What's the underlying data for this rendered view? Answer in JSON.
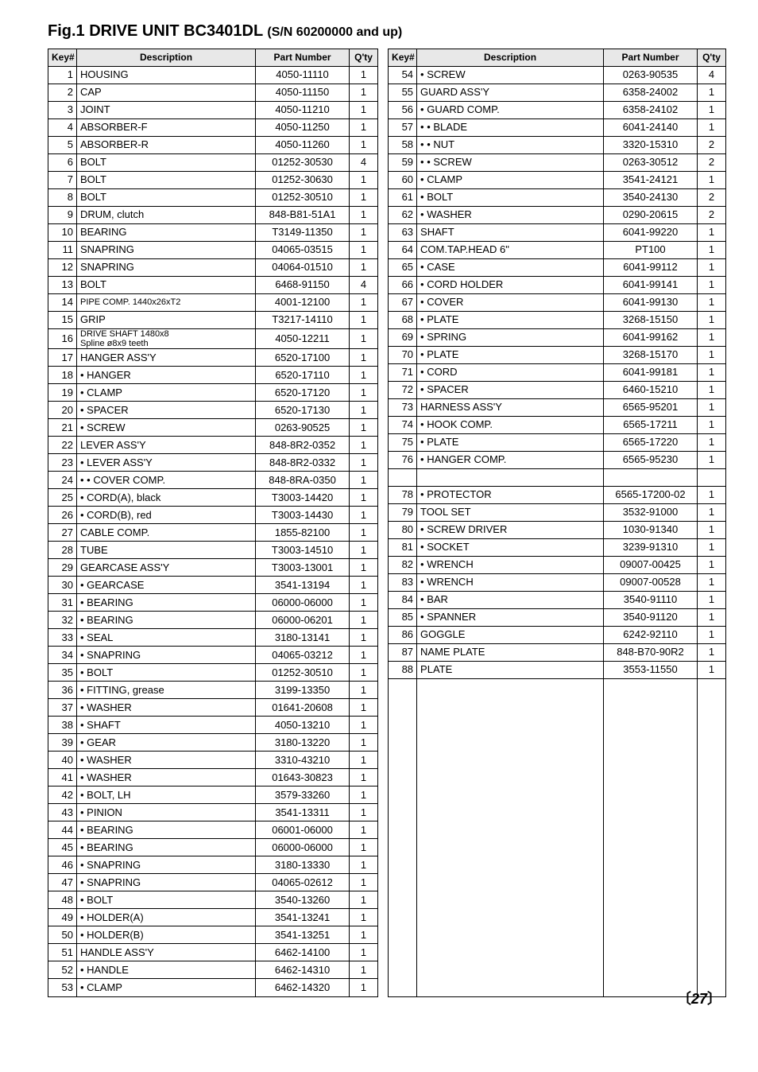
{
  "figure_title_prefix": "Fig.1 DRIVE UNIT  BC3401DL ",
  "figure_title_sn": "(S/N 60200000 and up)",
  "headers": {
    "key": "Key#",
    "desc": "Description",
    "part": "Part Number",
    "qty": "Q'ty"
  },
  "page_number": "27",
  "colors": {
    "header_bg": "#e8e8e8",
    "border": "#000000",
    "text": "#000000",
    "bg": "#ffffff"
  },
  "font": {
    "body_pt": 13,
    "title_pt": 20,
    "header_pt": 12
  },
  "left": [
    {
      "k": "1",
      "d": "HOUSING",
      "p": "4050-11110",
      "q": "1"
    },
    {
      "k": "2",
      "d": "CAP",
      "p": "4050-11150",
      "q": "1"
    },
    {
      "k": "3",
      "d": "JOINT",
      "p": "4050-11210",
      "q": "1"
    },
    {
      "k": "4",
      "d": "ABSORBER-F",
      "p": "4050-11250",
      "q": "1"
    },
    {
      "k": "5",
      "d": "ABSORBER-R",
      "p": "4050-11260",
      "q": "1"
    },
    {
      "k": "6",
      "d": "BOLT",
      "p": "01252-30530",
      "q": "4"
    },
    {
      "k": "7",
      "d": "BOLT",
      "p": "01252-30630",
      "q": "1"
    },
    {
      "k": "8",
      "d": "BOLT",
      "p": "01252-30510",
      "q": "1"
    },
    {
      "k": "9",
      "d": "DRUM, clutch",
      "p": "848-B81-51A1",
      "q": "1"
    },
    {
      "k": "10",
      "d": "BEARING",
      "p": "T3149-11350",
      "q": "1"
    },
    {
      "k": "11",
      "d": "SNAPRING",
      "p": "04065-03515",
      "q": "1"
    },
    {
      "k": "12",
      "d": "SNAPRING",
      "p": "04064-01510",
      "q": "1"
    },
    {
      "k": "13",
      "d": "BOLT",
      "p": "6468-91150",
      "q": "4"
    },
    {
      "k": "14",
      "d": "PIPE COMP. 1440x26xT2",
      "p": "4001-12100",
      "q": "1",
      "small": true
    },
    {
      "k": "15",
      "d": "GRIP",
      "p": "T3217-14110",
      "q": "1"
    },
    {
      "k": "16",
      "d": "DRIVE SHAFT 1480x8\nSpline ø8x9 teeth",
      "p": "4050-12211",
      "q": "1",
      "dbl": true,
      "small": true
    },
    {
      "k": "17",
      "d": "HANGER ASS'Y",
      "p": "6520-17100",
      "q": "1"
    },
    {
      "k": "18",
      "d": "• HANGER",
      "p": "6520-17110",
      "q": "1"
    },
    {
      "k": "19",
      "d": "• CLAMP",
      "p": "6520-17120",
      "q": "1"
    },
    {
      "k": "20",
      "d": "• SPACER",
      "p": "6520-17130",
      "q": "1"
    },
    {
      "k": "21",
      "d": "• SCREW",
      "p": "0263-90525",
      "q": "1"
    },
    {
      "k": "22",
      "d": "LEVER ASS'Y",
      "p": "848-8R2-0352",
      "q": "1"
    },
    {
      "k": "23",
      "d": "• LEVER ASS'Y",
      "p": "848-8R2-0332",
      "q": "1"
    },
    {
      "k": "24",
      "d": "• • COVER COMP.",
      "p": "848-8RA-0350",
      "q": "1"
    },
    {
      "k": "25",
      "d": "• CORD(A), black",
      "p": "T3003-14420",
      "q": "1"
    },
    {
      "k": "26",
      "d": "• CORD(B), red",
      "p": "T3003-14430",
      "q": "1"
    },
    {
      "k": "27",
      "d": "CABLE COMP.",
      "p": "1855-82100",
      "q": "1"
    },
    {
      "k": "28",
      "d": "TUBE",
      "p": "T3003-14510",
      "q": "1"
    },
    {
      "k": "29",
      "d": "GEARCASE ASS'Y",
      "p": "T3003-13001",
      "q": "1"
    },
    {
      "k": "30",
      "d": "• GEARCASE",
      "p": "3541-13194",
      "q": "1"
    },
    {
      "k": "31",
      "d": "• BEARING",
      "p": "06000-06000",
      "q": "1"
    },
    {
      "k": "32",
      "d": "• BEARING",
      "p": "06000-06201",
      "q": "1"
    },
    {
      "k": "33",
      "d": "• SEAL",
      "p": "3180-13141",
      "q": "1"
    },
    {
      "k": "34",
      "d": "• SNAPRING",
      "p": "04065-03212",
      "q": "1"
    },
    {
      "k": "35",
      "d": "• BOLT",
      "p": "01252-30510",
      "q": "1"
    },
    {
      "k": "36",
      "d": "• FITTING, grease",
      "p": "3199-13350",
      "q": "1"
    },
    {
      "k": "37",
      "d": "• WASHER",
      "p": "01641-20608",
      "q": "1"
    },
    {
      "k": "38",
      "d": "• SHAFT",
      "p": "4050-13210",
      "q": "1"
    },
    {
      "k": "39",
      "d": "• GEAR",
      "p": "3180-13220",
      "q": "1"
    },
    {
      "k": "40",
      "d": "• WASHER",
      "p": "3310-43210",
      "q": "1"
    },
    {
      "k": "41",
      "d": "• WASHER",
      "p": "01643-30823",
      "q": "1"
    },
    {
      "k": "42",
      "d": "• BOLT, LH",
      "p": "3579-33260",
      "q": "1"
    },
    {
      "k": "43",
      "d": "• PINION",
      "p": "3541-13311",
      "q": "1"
    },
    {
      "k": "44",
      "d": "• BEARING",
      "p": "06001-06000",
      "q": "1"
    },
    {
      "k": "45",
      "d": "• BEARING",
      "p": "06000-06000",
      "q": "1"
    },
    {
      "k": "46",
      "d": "• SNAPRING",
      "p": "3180-13330",
      "q": "1"
    },
    {
      "k": "47",
      "d": "• SNAPRING",
      "p": "04065-02612",
      "q": "1"
    },
    {
      "k": "48",
      "d": "• BOLT",
      "p": "3540-13260",
      "q": "1"
    },
    {
      "k": "49",
      "d": "• HOLDER(A)",
      "p": "3541-13241",
      "q": "1"
    },
    {
      "k": "50",
      "d": "• HOLDER(B)",
      "p": "3541-13251",
      "q": "1"
    },
    {
      "k": "51",
      "d": "HANDLE ASS'Y",
      "p": "6462-14100",
      "q": "1"
    },
    {
      "k": "52",
      "d": "• HANDLE",
      "p": "6462-14310",
      "q": "1"
    },
    {
      "k": "53",
      "d": "• CLAMP",
      "p": "6462-14320",
      "q": "1"
    }
  ],
  "right": [
    {
      "k": "54",
      "d": "• SCREW",
      "p": "0263-90535",
      "q": "4"
    },
    {
      "k": "55",
      "d": "GUARD ASS'Y",
      "p": "6358-24002",
      "q": "1"
    },
    {
      "k": "56",
      "d": "• GUARD COMP.",
      "p": "6358-24102",
      "q": "1"
    },
    {
      "k": "57",
      "d": "• • BLADE",
      "p": "6041-24140",
      "q": "1"
    },
    {
      "k": "58",
      "d": "• • NUT",
      "p": "3320-15310",
      "q": "2"
    },
    {
      "k": "59",
      "d": "• • SCREW",
      "p": "0263-30512",
      "q": "2"
    },
    {
      "k": "60",
      "d": "• CLAMP",
      "p": "3541-24121",
      "q": "1"
    },
    {
      "k": "61",
      "d": "• BOLT",
      "p": "3540-24130",
      "q": "2"
    },
    {
      "k": "62",
      "d": "• WASHER",
      "p": "0290-20615",
      "q": "2"
    },
    {
      "k": "63",
      "d": "SHAFT",
      "p": "6041-99220",
      "q": "1"
    },
    {
      "k": "64",
      "d": "COM.TAP.HEAD 6\"",
      "p": "PT100",
      "q": "1"
    },
    {
      "k": "65",
      "d": "• CASE",
      "p": "6041-99112",
      "q": "1"
    },
    {
      "k": "66",
      "d": "• CORD HOLDER",
      "p": "6041-99141",
      "q": "1"
    },
    {
      "k": "67",
      "d": "• COVER",
      "p": "6041-99130",
      "q": "1"
    },
    {
      "k": "68",
      "d": "• PLATE",
      "p": "3268-15150",
      "q": "1"
    },
    {
      "k": "69",
      "d": "• SPRING",
      "p": "6041-99162",
      "q": "1"
    },
    {
      "k": "70",
      "d": "• PLATE",
      "p": "3268-15170",
      "q": "1"
    },
    {
      "k": "71",
      "d": "• CORD",
      "p": "6041-99181",
      "q": "1"
    },
    {
      "k": "72",
      "d": "• SPACER",
      "p": "6460-15210",
      "q": "1"
    },
    {
      "k": "73",
      "d": "HARNESS ASS'Y",
      "p": "6565-95201",
      "q": "1"
    },
    {
      "k": "74",
      "d": "• HOOK COMP.",
      "p": "6565-17211",
      "q": "1"
    },
    {
      "k": "75",
      "d": "• PLATE",
      "p": "6565-17220",
      "q": "1"
    },
    {
      "k": "76",
      "d": "• HANGER COMP.",
      "p": "6565-95230",
      "q": "1"
    },
    {
      "blank": true
    },
    {
      "k": "78",
      "d": "• PROTECTOR",
      "p": "6565-17200-02",
      "q": "1"
    },
    {
      "k": "79",
      "d": "TOOL SET",
      "p": "3532-91000",
      "q": "1"
    },
    {
      "k": "80",
      "d": "• SCREW DRIVER",
      "p": "1030-91340",
      "q": "1"
    },
    {
      "k": "81",
      "d": "• SOCKET",
      "p": "3239-91310",
      "q": "1"
    },
    {
      "k": "82",
      "d": "• WRENCH",
      "p": "09007-00425",
      "q": "1"
    },
    {
      "k": "83",
      "d": "• WRENCH",
      "p": "09007-00528",
      "q": "1"
    },
    {
      "k": "84",
      "d": "• BAR",
      "p": "3540-91110",
      "q": "1"
    },
    {
      "k": "85",
      "d": "• SPANNER",
      "p": "3540-91120",
      "q": "1"
    },
    {
      "k": "86",
      "d": "GOGGLE",
      "p": "6242-92110",
      "q": "1"
    },
    {
      "k": "87",
      "d": "NAME PLATE",
      "p": "848-B70-90R2",
      "q": "1"
    },
    {
      "k": "88",
      "d": "PLATE",
      "p": "3553-11550",
      "q": "1"
    }
  ],
  "right_filler_rows": 19
}
